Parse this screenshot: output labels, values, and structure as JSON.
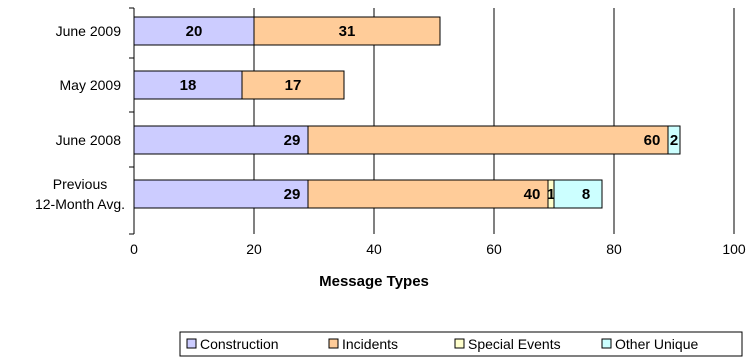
{
  "chart_data": {
    "type": "bar",
    "orientation": "horizontal",
    "stacked": true,
    "categories": [
      [
        "June 2009"
      ],
      [
        "May 2009"
      ],
      [
        "June 2008"
      ],
      [
        "Previous",
        "12-Month Avg."
      ]
    ],
    "series": [
      {
        "name": "Construction",
        "values": [
          20,
          18,
          29,
          29
        ],
        "labels": [
          "20",
          "18",
          "29",
          "29"
        ],
        "color": "#CCCCFF"
      },
      {
        "name": "Incidents",
        "values": [
          31,
          17,
          60,
          40
        ],
        "labels": [
          "31",
          "17",
          "60",
          "40"
        ],
        "color": "#FFCC99"
      },
      {
        "name": "Special Events",
        "values": [
          0,
          0,
          0,
          1
        ],
        "labels": [
          "",
          "",
          "",
          "1"
        ],
        "color": "#FFFFCC"
      },
      {
        "name": "Other Unique",
        "values": [
          0,
          0,
          2,
          8
        ],
        "labels": [
          "",
          "",
          "2",
          "8"
        ],
        "color": "#CCFFFF"
      }
    ],
    "xlabel": "Message Types",
    "xlim": [
      0,
      100
    ],
    "xticks": [
      0,
      20,
      40,
      60,
      80,
      100
    ],
    "grid": true,
    "legend_position": "bottom-right"
  }
}
